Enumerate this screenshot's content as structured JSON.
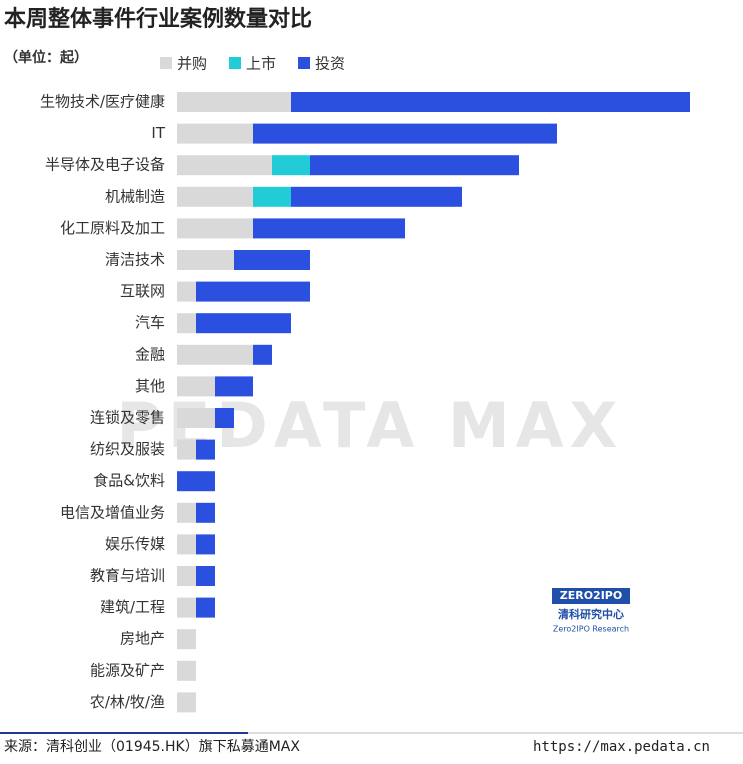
{
  "chart_data": {
    "type": "stacked-bar-horizontal",
    "title": "本周整体事件行业案例数量对比",
    "unit_note": "（单位：起）",
    "categories": [
      "生物技术/医疗健康",
      "IT",
      "半导体及电子设备",
      "机械制造",
      "化工原料及加工",
      "清洁技术",
      "互联网",
      "汽车",
      "金融",
      "其他",
      "连锁及零售",
      "纺织及服装",
      "食品&饮料",
      "电信及增值业务",
      "娱乐传媒",
      "教育与培训",
      "建筑/工程",
      "房地产",
      "能源及矿产",
      "农/林/牧/渔"
    ],
    "series": [
      {
        "name": "并购",
        "color": "#d9d9d9",
        "values": [
          6,
          4,
          5,
          4,
          4,
          3,
          1,
          1,
          4,
          2,
          2,
          1,
          0,
          1,
          1,
          1,
          1,
          1,
          1,
          1
        ]
      },
      {
        "name": "上市",
        "color": "#22ccd6",
        "values": [
          0,
          0,
          2,
          2,
          0,
          0,
          0,
          0,
          0,
          0,
          0,
          0,
          0,
          0,
          0,
          0,
          0,
          0,
          0,
          0
        ]
      },
      {
        "name": "投资",
        "color": "#2b50e0",
        "values": [
          21,
          16,
          11,
          9,
          8,
          4,
          6,
          5,
          1,
          2,
          1,
          1,
          2,
          1,
          1,
          1,
          1,
          0,
          0,
          0
        ]
      }
    ],
    "legend": "top"
  },
  "watermark": "PEDATA MAX",
  "logo": {
    "brand": "ZERO2IPO",
    "name": "清科研究中心",
    "sub": "Zero2IPO Research"
  },
  "footer": {
    "source": "来源：清科创业（01945.HK）旗下私募通MAX",
    "url": "https://max.pedata.cn"
  }
}
